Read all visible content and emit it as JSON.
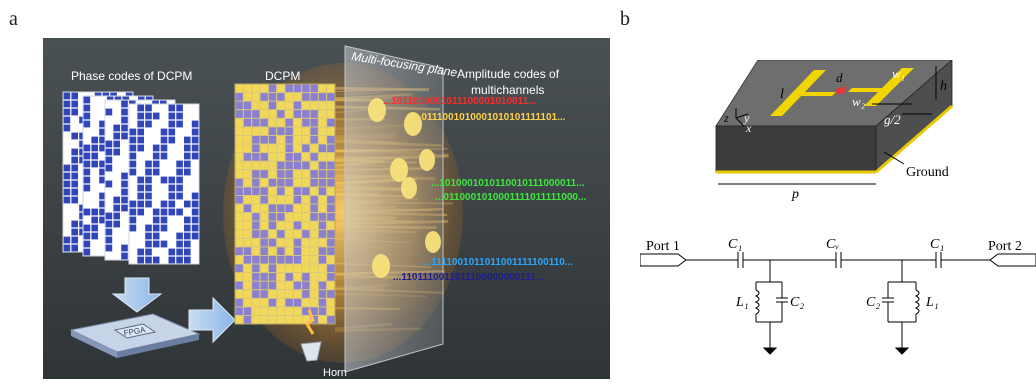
{
  "panel_a": {
    "label": "a",
    "phase_codes_title": "Phase codes of DCPM",
    "dcpm_label": "DCPM",
    "plane_label": "Multi-focusing plane",
    "amplitude_title_line1": "Amplitude codes of",
    "amplitude_title_line2": "multichannels",
    "fpga_label": "FPGA",
    "horn_label": "Horn",
    "code_rows": [
      {
        "text": "...1011010001011100001010011...",
        "color": "#ff2a2a"
      },
      {
        "text": "...0111001010001010101111101...",
        "color": "#ffd24a"
      },
      {
        "text": "...1010001010110010111000011...",
        "color": "#3ee83e"
      },
      {
        "text": "...0110001010001111011111000...",
        "color": "#3ee83e"
      },
      {
        "text": "...1111001011011001111100110...",
        "color": "#2aa6ff"
      },
      {
        "text": "...1101110011011100000000111...",
        "color": "#1d1d8f"
      }
    ]
  },
  "panel_b": {
    "label": "b",
    "dims": {
      "l": "l",
      "d": "d",
      "w1": "w₁",
      "w2": "w₂",
      "g2": "g/2",
      "h": "h",
      "p": "p",
      "ground": "Ground",
      "z": "z",
      "y": "y",
      "x": "x"
    },
    "circuit": {
      "port1": "Port 1",
      "port2": "Port 2",
      "c1_left": "C₁",
      "cv": "Cᵥ",
      "c1_right": "C₁",
      "l1_left": "L₁",
      "c2_left": "C₂",
      "c2_right": "C₂",
      "l1_right": "L₁"
    }
  }
}
